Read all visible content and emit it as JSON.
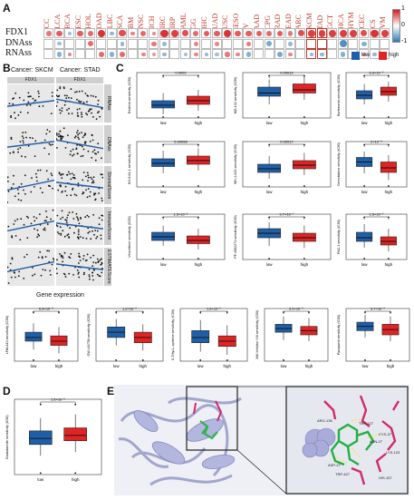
{
  "panel_labels": {
    "a": "A",
    "b": "B",
    "c": "C",
    "d": "D",
    "e": "E"
  },
  "panelA": {
    "rows": [
      "FDX1",
      "DNAss",
      "RNAss"
    ],
    "cancers": [
      "ACC",
      "BLCA",
      "BRCA",
      "CESC",
      "CHOL",
      "COAD",
      "DLBC",
      "ESCA",
      "GBM",
      "HNSC",
      "KICH",
      "KIRC",
      "KIRP",
      "LAML",
      "LGG",
      "LIHC",
      "LUAD",
      "LUSC",
      "MESO",
      "OV",
      "PAAD",
      "PCPG",
      "PRAD",
      "READ",
      "SARC",
      "SKCM",
      "STAD",
      "TGCT",
      "THCA",
      "THYM",
      "UCEC",
      "UCS",
      "UVM"
    ],
    "legend": {
      "max": "1",
      "mid": "0",
      "min": "-1"
    },
    "colors": {
      "pos": "#d7191c",
      "neg": "#2c7bb6"
    }
  },
  "legend_C": {
    "low": "low",
    "high": "high",
    "low_color": "#1f5fa8",
    "high_color": "#e02424"
  },
  "panelB": {
    "titles": [
      "Cancer: SKCM",
      "Cancer: STAD"
    ],
    "col_header": "FDX1",
    "rows": [
      "RNAss",
      "DNAss",
      "StromalScore",
      "ImmuneScore",
      "ESTIMATEScore"
    ],
    "xlabel": "Gene expression"
  },
  "boxplots": [
    {
      "ylab": "Erlotinib sensitivity (IC50)",
      "p": "0.0002"
    },
    {
      "ylab": "MG-132 sensitivity (IC50)",
      "p": "0.00012"
    },
    {
      "ylab": "Bortezomib sensitivity (IC50)",
      "p": "6.3×10⁻⁵"
    },
    {
      "ylab": "HG-6-64-1 sensitivity (IC50)",
      "p": "0.00068"
    },
    {
      "ylab": "WH-4-023 sensitivity (IC50)",
      "p": "0.00017"
    },
    {
      "ylab": "Gemcitabine sensitivity (IC50)",
      "p": "2×10⁻⁸"
    },
    {
      "ylab": "Vinorelbine sensitivity (IC50)",
      "p": "1.3×10⁻⁵"
    },
    {
      "ylab": "PF-4562271 sensitivity (IC50)",
      "p": "9.7×10⁻⁷"
    },
    {
      "ylab": "PAC-1 sensitivity (IC50)",
      "p": "1.5×10⁻⁵"
    },
    {
      "ylab": "LFM-A13 sensitivity (IC50)",
      "p": "6.8×10⁻⁸"
    },
    {
      "ylab": "GW-441756 sensitivity (IC50)",
      "p": "1.2×10⁻⁶"
    },
    {
      "ylab": "S-Trityl-L-cysteine sensitivity (IC50)",
      "p": "1.6×10⁻⁵"
    },
    {
      "ylab": "JNK Inhibitor VIII sensitivity (IC50)",
      "p": "3.9×10⁻⁶"
    },
    {
      "ylab": "Pazopanib sensitivity (IC50)",
      "p": "3.7×10⁻⁶"
    },
    {
      "ylab": "Bicalutamide sensitivity (IC50)",
      "p": "1.5×10⁻⁵"
    }
  ],
  "xcats": [
    "low",
    "high"
  ],
  "panelE": {
    "residues": [
      "ARG-136",
      "TRP-127",
      "CYS-37",
      "ASN-27",
      "LYS-123",
      "ASP-27",
      "TRP-427",
      "HIS-157"
    ]
  }
}
